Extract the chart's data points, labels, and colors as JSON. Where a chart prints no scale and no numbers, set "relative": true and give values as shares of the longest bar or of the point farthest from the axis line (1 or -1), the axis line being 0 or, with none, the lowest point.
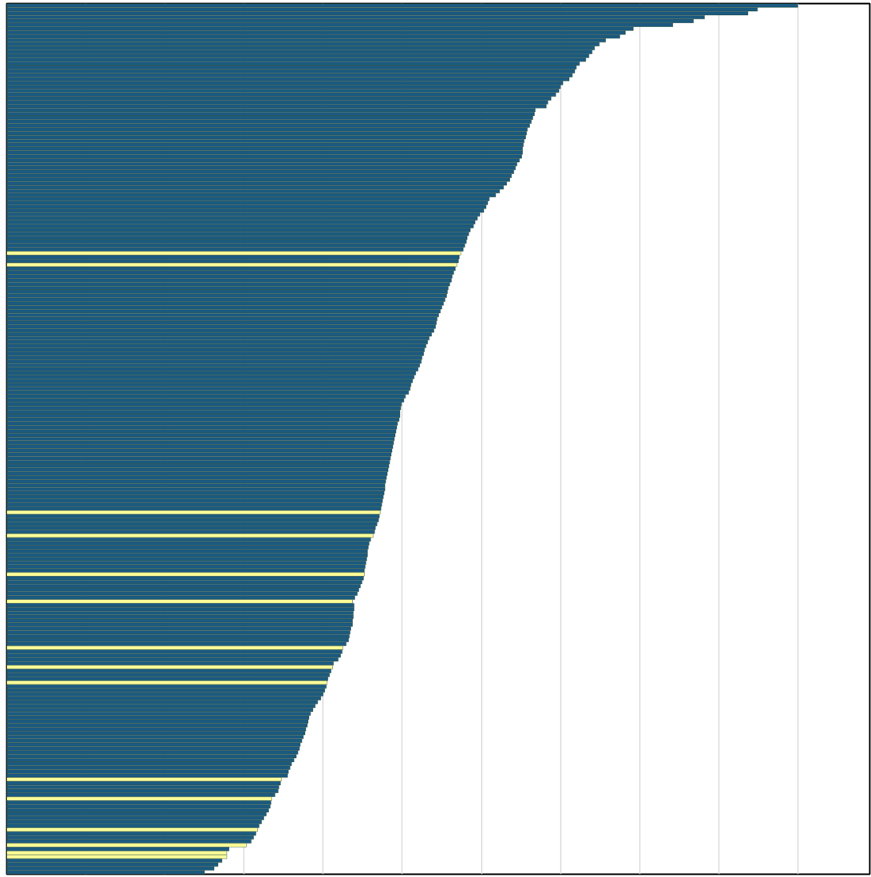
{
  "chart_data": {
    "type": "bar",
    "orientation": "horizontal",
    "relative": true,
    "grid": "x",
    "categories": [
      null,
      null,
      null,
      null,
      null,
      null,
      null,
      null,
      null,
      null,
      null,
      null,
      null,
      null,
      null,
      null,
      null,
      null,
      null,
      null,
      null,
      null,
      null,
      null,
      null,
      null,
      null,
      null,
      null,
      null,
      null,
      null,
      null,
      null,
      null,
      null,
      null,
      null,
      null,
      null,
      null,
      null,
      null,
      null,
      null,
      null,
      null,
      null,
      null,
      null,
      null,
      null,
      null,
      null,
      null,
      null,
      null,
      null,
      null,
      null,
      null,
      null,
      null,
      null,
      null,
      null,
      null,
      null,
      null,
      null,
      null,
      null,
      null,
      null,
      null,
      null,
      null,
      null,
      null,
      null,
      null,
      null,
      null,
      null,
      null,
      null,
      null,
      null,
      null,
      null,
      null,
      null,
      null,
      null,
      null,
      null,
      null,
      null,
      null,
      null,
      null,
      null,
      null,
      null,
      null,
      null,
      null,
      null,
      null,
      null,
      null,
      null,
      null,
      null,
      null,
      null,
      null,
      null,
      null,
      null,
      null,
      null,
      null,
      null,
      null,
      null,
      null,
      null,
      null,
      null,
      null,
      null,
      null,
      null,
      null,
      null,
      null,
      null,
      null,
      null,
      null,
      null,
      null,
      null,
      null,
      null,
      null,
      null,
      null,
      null,
      null,
      null,
      null,
      null,
      null,
      null,
      null,
      null,
      null,
      null,
      null,
      null,
      null,
      null,
      null,
      null,
      null,
      null,
      null,
      null,
      null,
      null,
      null,
      null,
      null,
      null,
      null,
      null,
      null,
      null,
      null,
      null,
      null,
      null,
      null,
      null,
      null,
      null,
      null,
      null,
      null,
      null,
      null,
      null,
      null,
      null,
      null,
      null,
      null,
      null,
      null,
      null,
      null,
      null,
      null,
      null,
      null,
      null,
      null,
      null,
      null,
      null,
      null,
      null,
      null,
      null,
      null,
      null,
      null,
      null,
      null,
      null,
      null,
      null,
      null
    ],
    "values": [
      1.0,
      0.949,
      0.937,
      0.882,
      0.868,
      0.842,
      0.792,
      0.782,
      0.775,
      0.757,
      0.749,
      0.743,
      0.74,
      0.736,
      0.732,
      0.724,
      0.72,
      0.718,
      0.715,
      0.711,
      0.703,
      0.7,
      0.698,
      0.694,
      0.688,
      0.684,
      0.682,
      0.668,
      0.667,
      0.665,
      0.663,
      0.661,
      0.658,
      0.657,
      0.656,
      0.654,
      0.653,
      0.652,
      0.652,
      0.651,
      0.648,
      0.645,
      0.643,
      0.641,
      0.638,
      0.636,
      0.632,
      0.628,
      0.623,
      0.618,
      0.61,
      0.608,
      0.606,
      0.603,
      0.598,
      0.595,
      0.592,
      0.59,
      0.586,
      0.584,
      0.582,
      0.581,
      0.579,
      0.577,
      0.574,
      0.572,
      0.571,
      0.569,
      0.567,
      0.565,
      0.563,
      0.562,
      0.56,
      0.558,
      0.557,
      0.556,
      0.554,
      0.552,
      0.55,
      0.548,
      0.546,
      0.544,
      0.543,
      0.542,
      0.54,
      0.537,
      0.534,
      0.532,
      0.53,
      0.528,
      0.527,
      0.525,
      0.524,
      0.522,
      0.52,
      0.517,
      0.515,
      0.513,
      0.511,
      0.51,
      0.508,
      0.504,
      0.502,
      0.499,
      0.498,
      0.497,
      0.497,
      0.496,
      0.494,
      0.493,
      0.492,
      0.491,
      0.49,
      0.489,
      0.488,
      0.487,
      0.486,
      0.485,
      0.484,
      0.483,
      0.482,
      0.481,
      0.48,
      0.479,
      0.478,
      0.478,
      0.477,
      0.476,
      0.475,
      0.474,
      0.473,
      0.472,
      0.471,
      0.47,
      0.468,
      0.466,
      0.465,
      0.463,
      0.46,
      0.458,
      0.457,
      0.456,
      0.456,
      0.455,
      0.454,
      0.453,
      0.452,
      0.452,
      0.451,
      0.449,
      0.447,
      0.445,
      0.443,
      0.44,
      0.437,
      0.439,
      0.439,
      0.438,
      0.438,
      0.437,
      0.437,
      0.435,
      0.434,
      0.433,
      0.432,
      0.429,
      0.425,
      0.424,
      0.422,
      0.419,
      0.413,
      0.412,
      0.41,
      0.408,
      0.406,
      0.405,
      0.404,
      0.402,
      0.4,
      0.397,
      0.393,
      0.39,
      0.387,
      0.384,
      0.382,
      0.381,
      0.38,
      0.378,
      0.377,
      0.375,
      0.373,
      0.371,
      0.37,
      0.368,
      0.366,
      0.363,
      0.36,
      0.358,
      0.356,
      0.355,
      0.347,
      0.346,
      0.344,
      0.343,
      0.339,
      0.335,
      0.334,
      0.333,
      0.331,
      0.328,
      0.325,
      0.322,
      0.319,
      0.317,
      0.315,
      0.312,
      0.309,
      0.303,
      0.281,
      0.278,
      0.278,
      0.272,
      0.267,
      0.262,
      0.25
    ],
    "colors": [
      "#1b5a80",
      "#1b5a80",
      "#1b5a80",
      "#1b5a80",
      "#1b5a80",
      "#1b5a80",
      "#1b5a80",
      "#1b5a80",
      "#1b5a80",
      "#1b5a80",
      "#1b5a80",
      "#1b5a80",
      "#1b5a80",
      "#1b5a80",
      "#1b5a80",
      "#1b5a80",
      "#1b5a80",
      "#1b5a80",
      "#1b5a80",
      "#1b5a80",
      "#1b5a80",
      "#1b5a80",
      "#1b5a80",
      "#1b5a80",
      "#1b5a80",
      "#1b5a80",
      "#1b5a80",
      "#1b5a80",
      "#1b5a80",
      "#1b5a80",
      "#1b5a80",
      "#1b5a80",
      "#1b5a80",
      "#1b5a80",
      "#1b5a80",
      "#1b5a80",
      "#1b5a80",
      "#1b5a80",
      "#1b5a80",
      "#1b5a80",
      "#1b5a80",
      "#1b5a80",
      "#1b5a80",
      "#1b5a80",
      "#1b5a80",
      "#1b5a80",
      "#1b5a80",
      "#1b5a80",
      "#1b5a80",
      "#1b5a80",
      "#1b5a80",
      "#1b5a80",
      "#1b5a80",
      "#1b5a80",
      "#1b5a80",
      "#1b5a80",
      "#1b5a80",
      "#1b5a80",
      "#1b5a80",
      "#1b5a80",
      "#1b5a80",
      "#1b5a80",
      "#1b5a80",
      "#1b5a80",
      "#ffff99",
      "#1b5a80",
      "#1b5a80",
      "#ffff99",
      "#1b5a80",
      "#1b5a80",
      "#1b5a80",
      "#1b5a80",
      "#1b5a80",
      "#1b5a80",
      "#1b5a80",
      "#1b5a80",
      "#1b5a80",
      "#1b5a80",
      "#1b5a80",
      "#1b5a80",
      "#1b5a80",
      "#1b5a80",
      "#1b5a80",
      "#1b5a80",
      "#1b5a80",
      "#1b5a80",
      "#1b5a80",
      "#1b5a80",
      "#1b5a80",
      "#1b5a80",
      "#1b5a80",
      "#1b5a80",
      "#1b5a80",
      "#1b5a80",
      "#1b5a80",
      "#1b5a80",
      "#1b5a80",
      "#1b5a80",
      "#1b5a80",
      "#1b5a80",
      "#1b5a80",
      "#1b5a80",
      "#1b5a80",
      "#1b5a80",
      "#1b5a80",
      "#1b5a80",
      "#1b5a80",
      "#1b5a80",
      "#1b5a80",
      "#1b5a80",
      "#1b5a80",
      "#1b5a80",
      "#1b5a80",
      "#1b5a80",
      "#1b5a80",
      "#1b5a80",
      "#1b5a80",
      "#1b5a80",
      "#1b5a80",
      "#1b5a80",
      "#1b5a80",
      "#1b5a80",
      "#1b5a80",
      "#1b5a80",
      "#1b5a80",
      "#1b5a80",
      "#1b5a80",
      "#1b5a80",
      "#1b5a80",
      "#1b5a80",
      "#1b5a80",
      "#ffff99",
      "#1b5a80",
      "#1b5a80",
      "#1b5a80",
      "#1b5a80",
      "#1b5a80",
      "#ffff99",
      "#1b5a80",
      "#1b5a80",
      "#1b5a80",
      "#1b5a80",
      "#1b5a80",
      "#1b5a80",
      "#1b5a80",
      "#1b5a80",
      "#1b5a80",
      "#ffff99",
      "#1b5a80",
      "#1b5a80",
      "#1b5a80",
      "#1b5a80",
      "#1b5a80",
      "#1b5a80",
      "#ffff99",
      "#1b5a80",
      "#1b5a80",
      "#1b5a80",
      "#1b5a80",
      "#1b5a80",
      "#1b5a80",
      "#1b5a80",
      "#1b5a80",
      "#1b5a80",
      "#1b5a80",
      "#1b5a80",
      "#ffff99",
      "#1b5a80",
      "#1b5a80",
      "#1b5a80",
      "#1b5a80",
      "#ffff99",
      "#1b5a80",
      "#1b5a80",
      "#1b5a80",
      "#ffff99",
      "#1b5a80",
      "#1b5a80",
      "#1b5a80",
      "#1b5a80",
      "#1b5a80",
      "#1b5a80",
      "#1b5a80",
      "#1b5a80",
      "#1b5a80",
      "#1b5a80",
      "#1b5a80",
      "#1b5a80",
      "#1b5a80",
      "#1b5a80",
      "#1b5a80",
      "#1b5a80",
      "#1b5a80",
      "#1b5a80",
      "#1b5a80",
      "#1b5a80",
      "#1b5a80",
      "#1b5a80",
      "#1b5a80",
      "#1b5a80",
      "#ffff99",
      "#1b5a80",
      "#1b5a80",
      "#1b5a80",
      "#1b5a80",
      "#ffff99",
      "#1b5a80",
      "#1b5a80",
      "#1b5a80",
      "#1b5a80",
      "#1b5a80",
      "#1b5a80",
      "#1b5a80",
      "#ffff99",
      "#1b5a80",
      "#1b5a80",
      "#1b5a80",
      "#ffff99",
      "#1b5a80",
      "#ffff99",
      "#ffff99",
      "#1b5a80",
      "#1b5a80",
      "#1b5a80",
      "#1b5a80"
    ]
  }
}
